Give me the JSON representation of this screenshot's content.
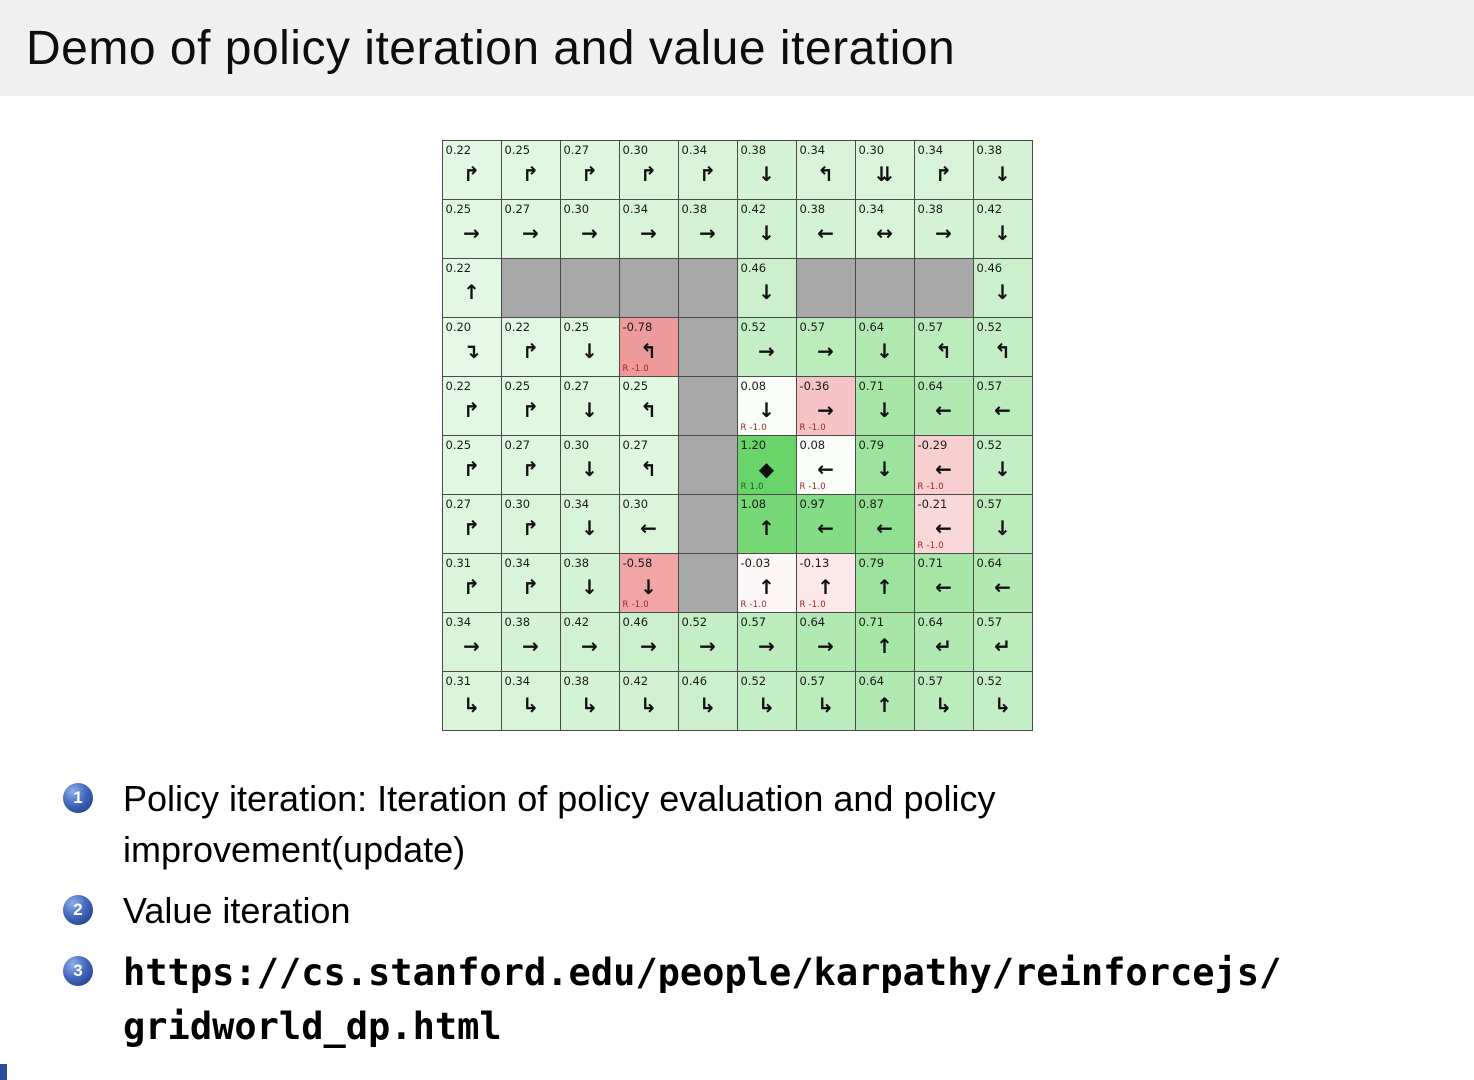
{
  "slide": {
    "title": "Demo of policy iteration and value iteration",
    "title_bg": "#f0f0f0",
    "accent_color": "#2a4d9b"
  },
  "bullets": [
    {
      "number": "1",
      "lines": [
        "Policy iteration: Iteration of policy evaluation and policy",
        "improvement(update)"
      ],
      "mono": false,
      "link": false
    },
    {
      "number": "2",
      "lines": [
        "Value iteration"
      ],
      "mono": false,
      "link": false
    },
    {
      "number": "3",
      "lines": [
        "https://cs.stanford.edu/people/karpathy/reinforcejs/",
        "gridworld_dp.html"
      ],
      "mono": true,
      "link": true
    }
  ],
  "gridworld": {
    "description": "gridworld value-iteration state values with greedy policy arrows",
    "wall_color": "#a8a8a8",
    "grid_line_color": "#4a4a4a",
    "reward_neg_color": "#a32222",
    "reward_pos_color": "#17671c",
    "rows": [
      [
        {
          "v": "0.22",
          "a": "↱",
          "bg": "#e3f8e3"
        },
        {
          "v": "0.25",
          "a": "↱",
          "bg": "#e0f7e0"
        },
        {
          "v": "0.27",
          "a": "↱",
          "bg": "#def6de"
        },
        {
          "v": "0.30",
          "a": "↱",
          "bg": "#daf5da"
        },
        {
          "v": "0.34",
          "a": "↱",
          "bg": "#d8f4d8"
        },
        {
          "v": "0.38",
          "a": "↓",
          "bg": "#d4f3d4"
        },
        {
          "v": "0.34",
          "a": "↰",
          "bg": "#d8f4d8"
        },
        {
          "v": "0.30",
          "a": "⇊",
          "bg": "#daf5da"
        },
        {
          "v": "0.34",
          "a": "↱",
          "bg": "#d8f4d8"
        },
        {
          "v": "0.38",
          "a": "↓",
          "bg": "#d4f3d4"
        }
      ],
      [
        {
          "v": "0.25",
          "a": "→",
          "bg": "#e0f7e0"
        },
        {
          "v": "0.27",
          "a": "→",
          "bg": "#def6de"
        },
        {
          "v": "0.30",
          "a": "→",
          "bg": "#daf5da"
        },
        {
          "v": "0.34",
          "a": "→",
          "bg": "#d8f4d8"
        },
        {
          "v": "0.38",
          "a": "→",
          "bg": "#d4f3d4"
        },
        {
          "v": "0.42",
          "a": "↓",
          "bg": "#d0f2d0"
        },
        {
          "v": "0.38",
          "a": "←",
          "bg": "#d4f3d4"
        },
        {
          "v": "0.34",
          "a": "↔",
          "bg": "#d8f4d8"
        },
        {
          "v": "0.38",
          "a": "→",
          "bg": "#d4f3d4"
        },
        {
          "v": "0.42",
          "a": "↓",
          "bg": "#d0f2d0"
        }
      ],
      [
        {
          "v": "0.22",
          "a": "↑",
          "bg": "#e3f8e3"
        },
        {
          "wall": true
        },
        {
          "wall": true
        },
        {
          "wall": true
        },
        {
          "wall": true
        },
        {
          "v": "0.46",
          "a": "↓",
          "bg": "#cbf0cb"
        },
        {
          "wall": true
        },
        {
          "wall": true
        },
        {
          "wall": true
        },
        {
          "v": "0.46",
          "a": "↓",
          "bg": "#cbf0cb"
        }
      ],
      [
        {
          "v": "0.20",
          "a": "↴",
          "bg": "#e5f9e5"
        },
        {
          "v": "0.22",
          "a": "↱",
          "bg": "#e3f8e3"
        },
        {
          "v": "0.25",
          "a": "↓",
          "bg": "#e0f7e0"
        },
        {
          "v": "-0.78",
          "a": "↰",
          "bg": "#ee9a9a",
          "r": "R -1.0",
          "rs": "neg"
        },
        {
          "wall": true
        },
        {
          "v": "0.52",
          "a": "→",
          "bg": "#c4eec4"
        },
        {
          "v": "0.57",
          "a": "→",
          "bg": "#bcecbc"
        },
        {
          "v": "0.64",
          "a": "↓",
          "bg": "#b2e9b2"
        },
        {
          "v": "0.57",
          "a": "↰",
          "bg": "#bcecbc"
        },
        {
          "v": "0.52",
          "a": "↰",
          "bg": "#c4eec4"
        }
      ],
      [
        {
          "v": "0.22",
          "a": "↱",
          "bg": "#e3f8e3"
        },
        {
          "v": "0.25",
          "a": "↱",
          "bg": "#e0f7e0"
        },
        {
          "v": "0.27",
          "a": "↓",
          "bg": "#def6de"
        },
        {
          "v": "0.25",
          "a": "↰",
          "bg": "#e0f7e0"
        },
        {
          "wall": true
        },
        {
          "v": "0.08",
          "a": "↓",
          "bg": "#f9fef9",
          "r": "R -1.0",
          "rs": "neg"
        },
        {
          "v": "-0.36",
          "a": "→",
          "bg": "#f6c4c4",
          "r": "R -1.0",
          "rs": "neg"
        },
        {
          "v": "0.71",
          "a": "↓",
          "bg": "#a8e6a8"
        },
        {
          "v": "0.64",
          "a": "←",
          "bg": "#b2e9b2"
        },
        {
          "v": "0.57",
          "a": "←",
          "bg": "#bcecbc"
        }
      ],
      [
        {
          "v": "0.25",
          "a": "↱",
          "bg": "#e0f7e0"
        },
        {
          "v": "0.27",
          "a": "↱",
          "bg": "#def6de"
        },
        {
          "v": "0.30",
          "a": "↓",
          "bg": "#daf5da"
        },
        {
          "v": "0.27",
          "a": "↰",
          "bg": "#def6de"
        },
        {
          "wall": true
        },
        {
          "v": "1.20",
          "a": "◆",
          "bg": "#69d469",
          "r": "R 1.0",
          "rs": "pos"
        },
        {
          "v": "0.08",
          "a": "←",
          "bg": "#f9fef9",
          "r": "R -1.0",
          "rs": "neg"
        },
        {
          "v": "0.79",
          "a": "↓",
          "bg": "#9de39d"
        },
        {
          "v": "-0.29",
          "a": "←",
          "bg": "#f8cfcf",
          "r": "R -1.0",
          "rs": "neg"
        },
        {
          "v": "0.52",
          "a": "↓",
          "bg": "#c4eec4"
        }
      ],
      [
        {
          "v": "0.27",
          "a": "↱",
          "bg": "#def6de"
        },
        {
          "v": "0.30",
          "a": "↱",
          "bg": "#daf5da"
        },
        {
          "v": "0.34",
          "a": "↓",
          "bg": "#d8f4d8"
        },
        {
          "v": "0.30",
          "a": "←",
          "bg": "#daf5da"
        },
        {
          "wall": true
        },
        {
          "v": "1.08",
          "a": "↑",
          "bg": "#77d877"
        },
        {
          "v": "0.97",
          "a": "←",
          "bg": "#84dc84"
        },
        {
          "v": "0.87",
          "a": "←",
          "bg": "#91e091"
        },
        {
          "v": "-0.21",
          "a": "←",
          "bg": "#f9d8d8",
          "r": "R -1.0",
          "rs": "neg"
        },
        {
          "v": "0.57",
          "a": "↓",
          "bg": "#bcecbc"
        }
      ],
      [
        {
          "v": "0.31",
          "a": "↱",
          "bg": "#daf5da"
        },
        {
          "v": "0.34",
          "a": "↱",
          "bg": "#d8f4d8"
        },
        {
          "v": "0.38",
          "a": "↓",
          "bg": "#d4f3d4"
        },
        {
          "v": "-0.58",
          "a": "↓",
          "bg": "#f1a6a6",
          "r": "R -1.0",
          "rs": "neg"
        },
        {
          "wall": true
        },
        {
          "v": "-0.03",
          "a": "↑",
          "bg": "#fef7f7",
          "r": "R -1.0",
          "rs": "neg"
        },
        {
          "v": "-0.13",
          "a": "↑",
          "bg": "#fce8e8",
          "r": "R -1.0",
          "rs": "neg"
        },
        {
          "v": "0.79",
          "a": "↑",
          "bg": "#9de39d"
        },
        {
          "v": "0.71",
          "a": "←",
          "bg": "#a8e6a8"
        },
        {
          "v": "0.64",
          "a": "←",
          "bg": "#b2e9b2"
        }
      ],
      [
        {
          "v": "0.34",
          "a": "→",
          "bg": "#d8f4d8"
        },
        {
          "v": "0.38",
          "a": "→",
          "bg": "#d4f3d4"
        },
        {
          "v": "0.42",
          "a": "→",
          "bg": "#d0f2d0"
        },
        {
          "v": "0.46",
          "a": "→",
          "bg": "#cbf0cb"
        },
        {
          "v": "0.52",
          "a": "→",
          "bg": "#c4eec4"
        },
        {
          "v": "0.57",
          "a": "→",
          "bg": "#bcecbc"
        },
        {
          "v": "0.64",
          "a": "→",
          "bg": "#b2e9b2"
        },
        {
          "v": "0.71",
          "a": "↑",
          "bg": "#a8e6a8"
        },
        {
          "v": "0.64",
          "a": "↵",
          "bg": "#b2e9b2"
        },
        {
          "v": "0.57",
          "a": "↵",
          "bg": "#bcecbc"
        }
      ],
      [
        {
          "v": "0.31",
          "a": "↳",
          "bg": "#daf5da"
        },
        {
          "v": "0.34",
          "a": "↳",
          "bg": "#d8f4d8"
        },
        {
          "v": "0.38",
          "a": "↳",
          "bg": "#d4f3d4"
        },
        {
          "v": "0.42",
          "a": "↳",
          "bg": "#d0f2d0"
        },
        {
          "v": "0.46",
          "a": "↳",
          "bg": "#cbf0cb"
        },
        {
          "v": "0.52",
          "a": "↳",
          "bg": "#c4eec4"
        },
        {
          "v": "0.57",
          "a": "↳",
          "bg": "#bcecbc"
        },
        {
          "v": "0.64",
          "a": "↑",
          "bg": "#b2e9b2"
        },
        {
          "v": "0.57",
          "a": "↳",
          "bg": "#bcecbc"
        },
        {
          "v": "0.52",
          "a": "↳",
          "bg": "#c4eec4"
        }
      ]
    ]
  }
}
